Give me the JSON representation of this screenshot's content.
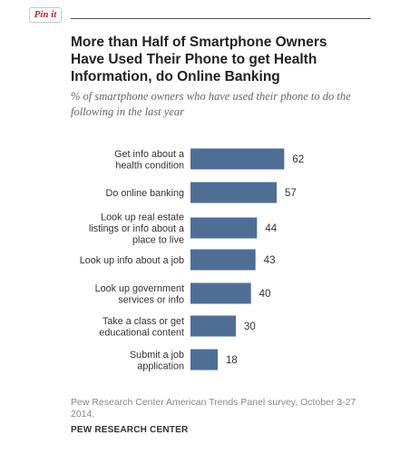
{
  "pin_button": {
    "label": "Pin it"
  },
  "title": "More than Half of Smartphone Owners Have Used Their Phone to get Health Information, do Online Banking",
  "subtitle": "% of smartphone owners who have used their phone to do the following in the last year",
  "source": "Pew Research Center American Trends Panel survey, October 3-27 2014.",
  "organization": "PEW RESEARCH CENTER",
  "colors": {
    "bar": "#4e6e96",
    "rule": "#555555",
    "pin": "#c92228"
  },
  "chart_data": {
    "type": "bar",
    "orientation": "horizontal",
    "categories": [
      [
        "Get info about a",
        "health condition"
      ],
      [
        "Do online banking"
      ],
      [
        "Look up real estate",
        "listings or info about a",
        "place to live"
      ],
      [
        "Look up info about a job"
      ],
      [
        "Look up government",
        "services or info"
      ],
      [
        "Take a class or get",
        "educational content"
      ],
      [
        "Submit a job",
        "application"
      ]
    ],
    "values": [
      62,
      57,
      44,
      43,
      40,
      30,
      18
    ],
    "value_labels": [
      "62",
      "57",
      "44",
      "43",
      "40",
      "30",
      "18"
    ],
    "xlim": [
      0,
      100
    ],
    "grid": false,
    "legend": "none"
  }
}
